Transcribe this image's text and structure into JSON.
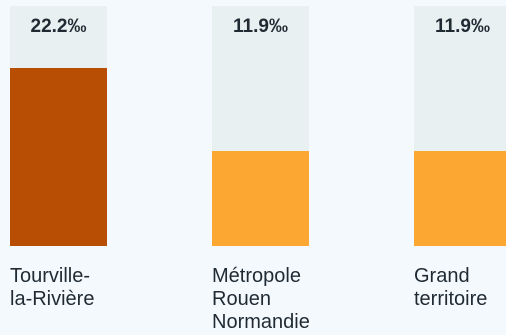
{
  "chart_data": {
    "type": "bar",
    "unit": "‰",
    "ylim": [
      0,
      30
    ],
    "categories": [
      "Tourville-\nla-Rivière",
      "Métropole\nRouen\nNormandie",
      "Grand\nterritoire"
    ],
    "series": [
      {
        "values": [
          22.2,
          11.9,
          11.9
        ],
        "value_labels": [
          "22.2‰",
          "11.9‰",
          "11.9‰"
        ]
      }
    ],
    "colors": [
      "#b84e04",
      "#fba731",
      "#fba731"
    ],
    "track_color": "#e9f0f1"
  }
}
